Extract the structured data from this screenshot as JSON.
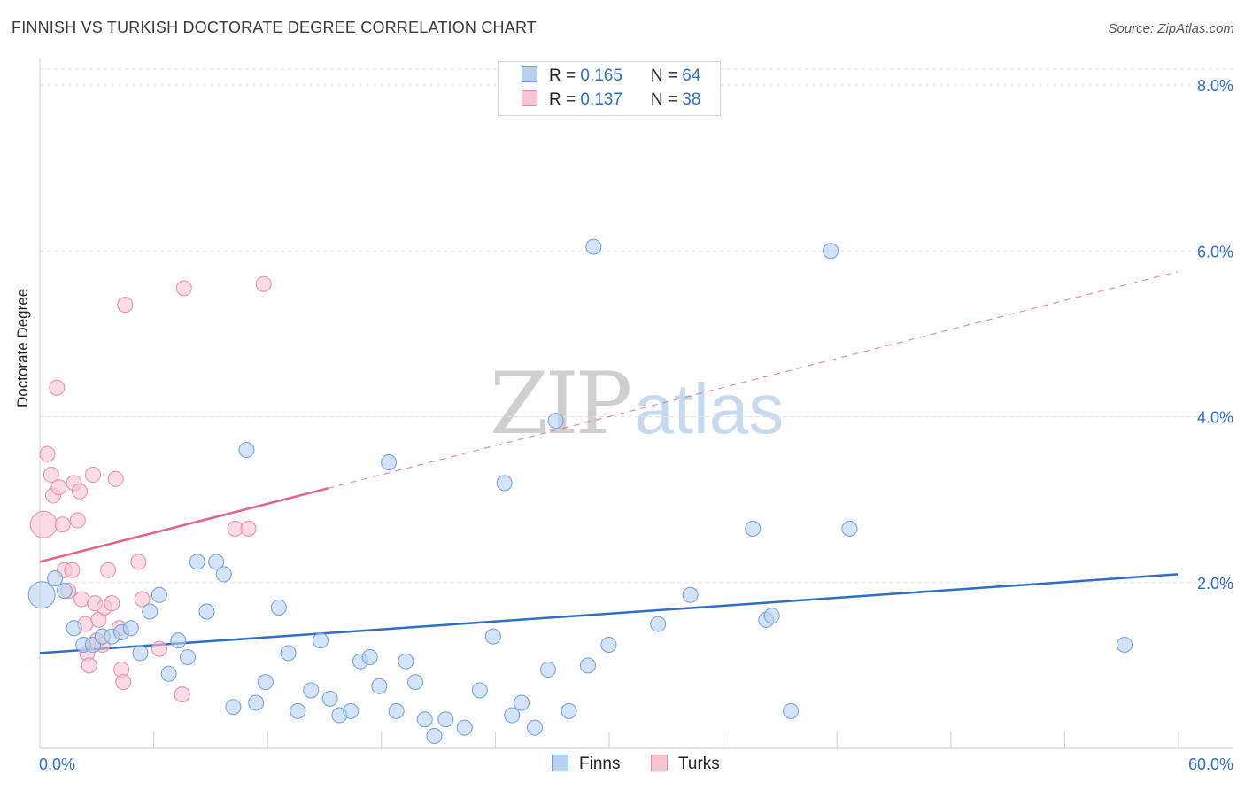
{
  "title": "FINNISH VS TURKISH DOCTORATE DEGREE CORRELATION CHART",
  "source": "Source: ZipAtlas.com",
  "watermark": {
    "zip": "ZIP",
    "atlas": "atlas"
  },
  "legend": {
    "rows": [
      {
        "r_label": "R = ",
        "r_value": "0.165",
        "n_label": "N = ",
        "n_value": "64"
      },
      {
        "r_label": "R = ",
        "r_value": "0.137",
        "n_label": "N = ",
        "n_value": "38"
      }
    ],
    "bottom": [
      "Finns",
      "Turks"
    ]
  },
  "colors": {
    "finns_fill": "#b7d1f2",
    "finns_stroke": "#6e9fdc",
    "finns_line": "#2f6ec4",
    "turks_fill": "#f8c4d3",
    "turks_stroke": "#ea8aa7",
    "turks_line": "#e0648a",
    "grid": "#e2e2e2",
    "axis_text": "#2f6ec4"
  },
  "chart_data": {
    "type": "scatter",
    "title": "FINNISH VS TURKISH DOCTORATE DEGREE CORRELATION CHART",
    "xlabel": "",
    "ylabel": "Doctorate Degree",
    "xlim": [
      0,
      60
    ],
    "ylim": [
      0,
      8
    ],
    "x_tick_labels": [
      "0.0%",
      "60.0%"
    ],
    "y_ticks": [
      2,
      4,
      6,
      8
    ],
    "y_tick_labels": [
      "2.0%",
      "4.0%",
      "6.0%",
      "8.0%"
    ],
    "grid": true,
    "series": [
      {
        "name": "Finns",
        "r": 0.165,
        "n": 64,
        "trend": {
          "x0": 0,
          "y0": 1.15,
          "x1": 60,
          "y1": 2.1,
          "dashed_from": null
        },
        "points": [
          {
            "x": 0.1,
            "y": 1.85,
            "big": true
          },
          {
            "x": 0.8,
            "y": 2.05
          },
          {
            "x": 1.3,
            "y": 1.9
          },
          {
            "x": 1.8,
            "y": 1.45
          },
          {
            "x": 2.3,
            "y": 1.25
          },
          {
            "x": 2.8,
            "y": 1.25
          },
          {
            "x": 3.3,
            "y": 1.35
          },
          {
            "x": 3.8,
            "y": 1.35
          },
          {
            "x": 4.3,
            "y": 1.4
          },
          {
            "x": 4.8,
            "y": 1.45
          },
          {
            "x": 5.3,
            "y": 1.15
          },
          {
            "x": 5.8,
            "y": 1.65
          },
          {
            "x": 6.3,
            "y": 1.85
          },
          {
            "x": 6.8,
            "y": 0.9
          },
          {
            "x": 7.3,
            "y": 1.3
          },
          {
            "x": 7.8,
            "y": 1.1
          },
          {
            "x": 8.3,
            "y": 2.25
          },
          {
            "x": 8.8,
            "y": 1.65
          },
          {
            "x": 9.3,
            "y": 2.25
          },
          {
            "x": 9.7,
            "y": 2.1
          },
          {
            "x": 10.2,
            "y": 0.5
          },
          {
            "x": 10.9,
            "y": 3.6
          },
          {
            "x": 11.4,
            "y": 0.55
          },
          {
            "x": 11.9,
            "y": 0.8
          },
          {
            "x": 12.6,
            "y": 1.7
          },
          {
            "x": 13.1,
            "y": 1.15
          },
          {
            "x": 13.6,
            "y": 0.45
          },
          {
            "x": 14.3,
            "y": 0.7
          },
          {
            "x": 14.8,
            "y": 1.3
          },
          {
            "x": 15.3,
            "y": 0.6
          },
          {
            "x": 15.8,
            "y": 0.4
          },
          {
            "x": 16.4,
            "y": 0.45
          },
          {
            "x": 16.9,
            "y": 1.05
          },
          {
            "x": 17.4,
            "y": 1.1
          },
          {
            "x": 17.9,
            "y": 0.75
          },
          {
            "x": 18.4,
            "y": 3.45
          },
          {
            "x": 18.8,
            "y": 0.45
          },
          {
            "x": 19.3,
            "y": 1.05
          },
          {
            "x": 19.8,
            "y": 0.8
          },
          {
            "x": 20.3,
            "y": 0.35
          },
          {
            "x": 20.8,
            "y": 0.15
          },
          {
            "x": 21.4,
            "y": 0.35
          },
          {
            "x": 22.4,
            "y": 0.25
          },
          {
            "x": 23.2,
            "y": 0.7
          },
          {
            "x": 23.9,
            "y": 1.35
          },
          {
            "x": 24.5,
            "y": 3.2
          },
          {
            "x": 24.9,
            "y": 0.4
          },
          {
            "x": 25.4,
            "y": 0.55
          },
          {
            "x": 26.1,
            "y": 0.25
          },
          {
            "x": 26.8,
            "y": 0.95
          },
          {
            "x": 27.2,
            "y": 3.95
          },
          {
            "x": 27.9,
            "y": 0.45
          },
          {
            "x": 28.9,
            "y": 1.0
          },
          {
            "x": 29.2,
            "y": 6.05
          },
          {
            "x": 30.0,
            "y": 1.25
          },
          {
            "x": 32.6,
            "y": 1.5
          },
          {
            "x": 34.3,
            "y": 1.85
          },
          {
            "x": 37.6,
            "y": 2.65
          },
          {
            "x": 38.3,
            "y": 1.55
          },
          {
            "x": 38.6,
            "y": 1.6
          },
          {
            "x": 39.6,
            "y": 0.45
          },
          {
            "x": 41.7,
            "y": 6.0
          },
          {
            "x": 42.7,
            "y": 2.65
          },
          {
            "x": 57.2,
            "y": 1.25
          }
        ]
      },
      {
        "name": "Turks",
        "r": 0.137,
        "n": 38,
        "trend": {
          "x0": 0,
          "y0": 2.25,
          "x1": 60,
          "y1": 5.75,
          "dashed_from": 15.2
        },
        "points": [
          {
            "x": 0.2,
            "y": 2.7,
            "big": true
          },
          {
            "x": 0.4,
            "y": 3.55
          },
          {
            "x": 0.6,
            "y": 3.3
          },
          {
            "x": 0.7,
            "y": 3.05
          },
          {
            "x": 0.9,
            "y": 4.35
          },
          {
            "x": 1.0,
            "y": 3.15
          },
          {
            "x": 1.2,
            "y": 2.7
          },
          {
            "x": 1.3,
            "y": 2.15
          },
          {
            "x": 1.5,
            "y": 1.9
          },
          {
            "x": 1.7,
            "y": 2.15
          },
          {
            "x": 1.8,
            "y": 3.2
          },
          {
            "x": 2.0,
            "y": 2.75
          },
          {
            "x": 2.1,
            "y": 3.1
          },
          {
            "x": 2.2,
            "y": 1.8
          },
          {
            "x": 2.4,
            "y": 1.5
          },
          {
            "x": 2.5,
            "y": 1.15
          },
          {
            "x": 2.6,
            "y": 1.0
          },
          {
            "x": 2.8,
            "y": 3.3
          },
          {
            "x": 2.9,
            "y": 1.75
          },
          {
            "x": 3.0,
            "y": 1.3
          },
          {
            "x": 3.1,
            "y": 1.55
          },
          {
            "x": 3.3,
            "y": 1.25
          },
          {
            "x": 3.4,
            "y": 1.7
          },
          {
            "x": 3.6,
            "y": 2.15
          },
          {
            "x": 3.8,
            "y": 1.75
          },
          {
            "x": 4.0,
            "y": 3.25
          },
          {
            "x": 4.2,
            "y": 1.45
          },
          {
            "x": 4.3,
            "y": 0.95
          },
          {
            "x": 4.4,
            "y": 0.8
          },
          {
            "x": 4.5,
            "y": 5.35
          },
          {
            "x": 5.2,
            "y": 2.25
          },
          {
            "x": 5.4,
            "y": 1.8
          },
          {
            "x": 6.3,
            "y": 1.2
          },
          {
            "x": 7.5,
            "y": 0.65
          },
          {
            "x": 7.6,
            "y": 5.55
          },
          {
            "x": 10.3,
            "y": 2.65
          },
          {
            "x": 11.0,
            "y": 2.65
          },
          {
            "x": 11.8,
            "y": 5.6
          }
        ]
      }
    ]
  }
}
